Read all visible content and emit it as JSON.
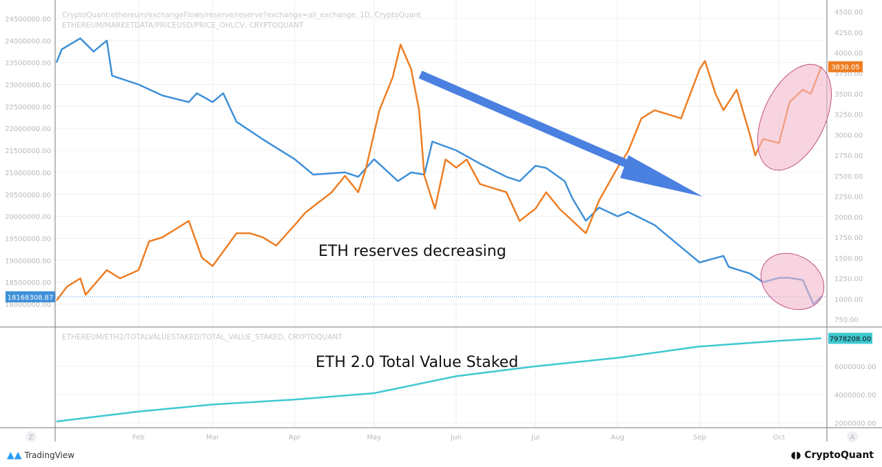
{
  "legend": {
    "line1": "CryptoQuant:ethereum/exchangeFlows/reserve/reserve?exchange=all_exchange, 1D, CryptoQuant",
    "line2": "ETHEREUM/MARKETDATA/PRICEUSD/PRICE_OHLCV, CRYPTOQUANT",
    "line3": "ETHEREUM/ETH2/TOTALVALUESTAKED/TOTAL_VALUE_STAKED, CRYPTOQUANT"
  },
  "annotations": {
    "reserves": "ETH reserves decreasing",
    "staked": "ETH 2.0 Total Value Staked"
  },
  "footer": {
    "tradingview": "TradingView",
    "cryptoquant": "CryptoQuant",
    "z_button": "Z",
    "a_button": "A"
  },
  "colors": {
    "reserve": "#3d8fd8",
    "price": "#ee7d22",
    "staked": "#3ec8d0",
    "arrow": "#4a80e0",
    "highlight": "#f4b8cc"
  },
  "chart_data": {
    "type": "line",
    "x_ticks": [
      "Feb",
      "Mar",
      "Apr",
      "May",
      "Jun",
      "Jul",
      "Aug",
      "Sep",
      "Oct"
    ],
    "left_axis": {
      "ticks": [
        "24500000.00",
        "24000000.00",
        "23500000.00",
        "23000000.00",
        "22500000.00",
        "22000000.00",
        "21500000.00",
        "21000000.00",
        "20500000.00",
        "20000000.00",
        "19500000.00",
        "19000000.00",
        "18500000.00",
        "18000000.00"
      ],
      "range": [
        17850000,
        24700000
      ]
    },
    "right_axis": {
      "ticks": [
        "4500.00",
        "4250.00",
        "4000.00",
        "3750.00",
        "3500.00",
        "3250.00",
        "3000.00",
        "2750.00",
        "2500.00",
        "2250.00",
        "2000.00",
        "1750.00",
        "1500.00",
        "1250.00",
        "1000.00",
        "750.00"
      ],
      "range": [
        700,
        4550
      ]
    },
    "lower_axis": {
      "ticks": [
        "2000000.00",
        "4000000.00",
        "6000000.00"
      ],
      "range": [
        1700000,
        8500000
      ]
    },
    "last_values": {
      "reserve": "18168308.87",
      "price": "3830.05",
      "staked": "7978208.00"
    },
    "series": [
      {
        "key": "reserve",
        "axis": "left",
        "points": [
          [
            "2021-01-01",
            23500000
          ],
          [
            "2021-01-03",
            23800000
          ],
          [
            "2021-01-10",
            24050000
          ],
          [
            "2021-01-15",
            23750000
          ],
          [
            "2021-01-20",
            24000000
          ],
          [
            "2021-01-22",
            23200000
          ],
          [
            "2021-02-01",
            23000000
          ],
          [
            "2021-02-10",
            22750000
          ],
          [
            "2021-02-20",
            22600000
          ],
          [
            "2021-02-23",
            22800000
          ],
          [
            "2021-03-01",
            22600000
          ],
          [
            "2021-03-05",
            22800000
          ],
          [
            "2021-03-10",
            22150000
          ],
          [
            "2021-03-20",
            21750000
          ],
          [
            "2021-04-01",
            21300000
          ],
          [
            "2021-04-08",
            20950000
          ],
          [
            "2021-04-20",
            21000000
          ],
          [
            "2021-04-25",
            20900000
          ],
          [
            "2021-05-01",
            21300000
          ],
          [
            "2021-05-10",
            20800000
          ],
          [
            "2021-05-15",
            21000000
          ],
          [
            "2021-05-20",
            20950000
          ],
          [
            "2021-05-23",
            21700000
          ],
          [
            "2021-06-01",
            21500000
          ],
          [
            "2021-06-10",
            21200000
          ],
          [
            "2021-06-20",
            20900000
          ],
          [
            "2021-06-25",
            20800000
          ],
          [
            "2021-07-01",
            21150000
          ],
          [
            "2021-07-05",
            21100000
          ],
          [
            "2021-07-12",
            20800000
          ],
          [
            "2021-07-15",
            20400000
          ],
          [
            "2021-07-20",
            19900000
          ],
          [
            "2021-07-25",
            20200000
          ],
          [
            "2021-08-01",
            20000000
          ],
          [
            "2021-08-05",
            20100000
          ],
          [
            "2021-08-15",
            19800000
          ],
          [
            "2021-08-25",
            19300000
          ],
          [
            "2021-09-01",
            18950000
          ],
          [
            "2021-09-10",
            19100000
          ],
          [
            "2021-09-12",
            18850000
          ],
          [
            "2021-09-20",
            18700000
          ],
          [
            "2021-09-25",
            18500000
          ],
          [
            "2021-10-01",
            18600000
          ],
          [
            "2021-10-05",
            18600000
          ],
          [
            "2021-10-10",
            18550000
          ],
          [
            "2021-10-14",
            18000000
          ],
          [
            "2021-10-17",
            18168309
          ]
        ]
      },
      {
        "key": "price",
        "axis": "right",
        "points": [
          [
            "2021-01-01",
            980
          ],
          [
            "2021-01-05",
            1150
          ],
          [
            "2021-01-10",
            1250
          ],
          [
            "2021-01-12",
            1050
          ],
          [
            "2021-01-20",
            1350
          ],
          [
            "2021-01-25",
            1250
          ],
          [
            "2021-02-01",
            1350
          ],
          [
            "2021-02-05",
            1700
          ],
          [
            "2021-02-10",
            1750
          ],
          [
            "2021-02-20",
            1950
          ],
          [
            "2021-02-25",
            1500
          ],
          [
            "2021-03-01",
            1400
          ],
          [
            "2021-03-10",
            1800
          ],
          [
            "2021-03-15",
            1800
          ],
          [
            "2021-03-20",
            1750
          ],
          [
            "2021-03-25",
            1650
          ],
          [
            "2021-04-01",
            1900
          ],
          [
            "2021-04-05",
            2050
          ],
          [
            "2021-04-15",
            2300
          ],
          [
            "2021-04-20",
            2500
          ],
          [
            "2021-04-25",
            2300
          ],
          [
            "2021-04-28",
            2600
          ],
          [
            "2021-05-03",
            3300
          ],
          [
            "2021-05-08",
            3700
          ],
          [
            "2021-05-11",
            4100
          ],
          [
            "2021-05-15",
            3800
          ],
          [
            "2021-05-18",
            3300
          ],
          [
            "2021-05-20",
            2500
          ],
          [
            "2021-05-24",
            2100
          ],
          [
            "2021-05-28",
            2700
          ],
          [
            "2021-06-01",
            2600
          ],
          [
            "2021-06-05",
            2700
          ],
          [
            "2021-06-10",
            2400
          ],
          [
            "2021-06-20",
            2300
          ],
          [
            "2021-06-25",
            1950
          ],
          [
            "2021-07-01",
            2100
          ],
          [
            "2021-07-05",
            2300
          ],
          [
            "2021-07-10",
            2100
          ],
          [
            "2021-07-20",
            1800
          ],
          [
            "2021-07-25",
            2200
          ],
          [
            "2021-08-01",
            2600
          ],
          [
            "2021-08-05",
            2800
          ],
          [
            "2021-08-10",
            3200
          ],
          [
            "2021-08-15",
            3300
          ],
          [
            "2021-08-20",
            3250
          ],
          [
            "2021-08-25",
            3200
          ],
          [
            "2021-09-01",
            3800
          ],
          [
            "2021-09-03",
            3900
          ],
          [
            "2021-09-07",
            3500
          ],
          [
            "2021-09-10",
            3300
          ],
          [
            "2021-09-15",
            3550
          ],
          [
            "2021-09-20",
            3000
          ],
          [
            "2021-09-22",
            2750
          ],
          [
            "2021-09-25",
            2950
          ],
          [
            "2021-10-01",
            2900
          ],
          [
            "2021-10-05",
            3400
          ],
          [
            "2021-10-10",
            3550
          ],
          [
            "2021-10-13",
            3500
          ],
          [
            "2021-10-17",
            3830.05
          ]
        ]
      },
      {
        "key": "staked",
        "axis": "lower",
        "points": [
          [
            "2021-01-01",
            2100000
          ],
          [
            "2021-02-01",
            2800000
          ],
          [
            "2021-03-01",
            3300000
          ],
          [
            "2021-04-01",
            3650000
          ],
          [
            "2021-05-01",
            4100000
          ],
          [
            "2021-06-01",
            5300000
          ],
          [
            "2021-07-01",
            6000000
          ],
          [
            "2021-08-01",
            6600000
          ],
          [
            "2021-09-01",
            7400000
          ],
          [
            "2021-10-01",
            7800000
          ],
          [
            "2021-10-17",
            7978208
          ]
        ]
      }
    ]
  }
}
